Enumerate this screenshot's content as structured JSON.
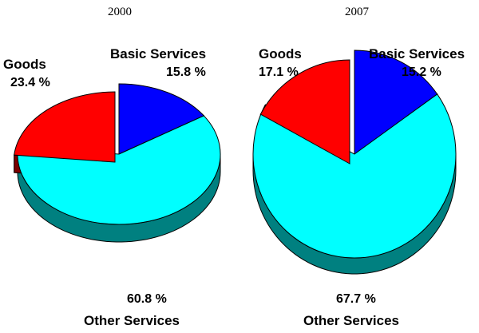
{
  "chart_data": [
    {
      "type": "pie",
      "title": "2000",
      "slices": [
        {
          "label": "Basic Services",
          "value": 15.8,
          "value_label": "15.8 %",
          "color": "#0000ff",
          "side_color": "#00007a"
        },
        {
          "label": "Other Services",
          "value": 60.8,
          "value_label": "60.8 %",
          "color": "#00ffff",
          "side_color": "#008080"
        },
        {
          "label": "Goods",
          "value": 23.4,
          "value_label": "23.4 %",
          "color": "#ff0000",
          "side_color": "#7a0000",
          "exploded": true
        }
      ]
    },
    {
      "type": "pie",
      "title": "2007",
      "slices": [
        {
          "label": "Basic Services",
          "value": 15.2,
          "value_label": "15.2 %",
          "color": "#0000ff",
          "side_color": "#00007a"
        },
        {
          "label": "Other Services",
          "value": 67.7,
          "value_label": "67.7 %",
          "color": "#00ffff",
          "side_color": "#008080"
        },
        {
          "label": "Goods",
          "value": 17.1,
          "value_label": "17.1 %",
          "color": "#ff0000",
          "side_color": "#7a0000",
          "exploded": true
        }
      ]
    }
  ]
}
